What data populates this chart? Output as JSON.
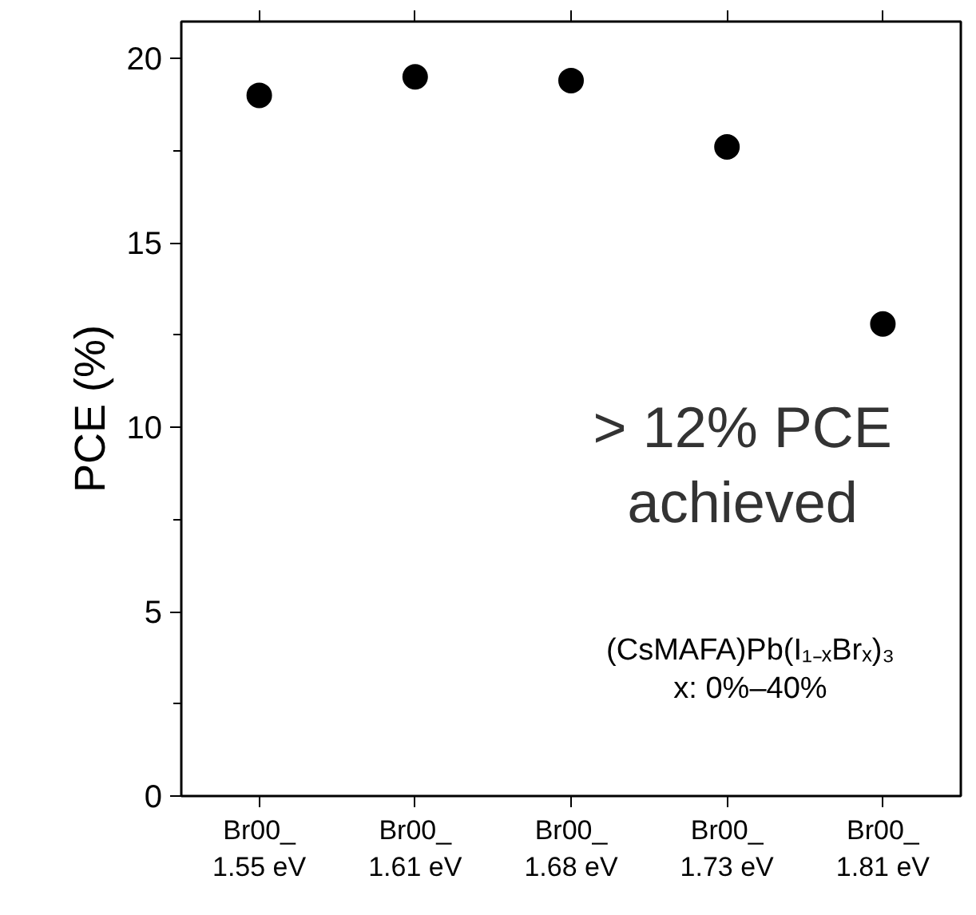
{
  "chart_data": {
    "type": "scatter",
    "ylabel": "PCE (%)",
    "categories": [
      "Br00_\n1.55 eV",
      "Br00_\n1.61 eV",
      "Br00_\n1.68 eV",
      "Br00_\n1.73 eV",
      "Br00_\n1.81 eV"
    ],
    "series": [
      {
        "color": "#000000",
        "values": [
          19.0,
          19.5,
          19.4,
          17.6,
          12.8
        ]
      }
    ],
    "ylim": [
      0,
      21
    ],
    "yticks": [
      0,
      {
        "value": 2.5,
        "label": null
      },
      5,
      {
        "value": 7.5,
        "label": null
      },
      10,
      {
        "value": 12.5,
        "label": null
      },
      15,
      {
        "value": 17.5,
        "label": null
      },
      20
    ],
    "annotations": [
      "> 12% PCE\nachieved",
      "(CsMAFA)Pb(I₁₋ₓBrₓ)₃\nx: 0%–40%"
    ],
    "marker": "circle",
    "grid": false
  }
}
